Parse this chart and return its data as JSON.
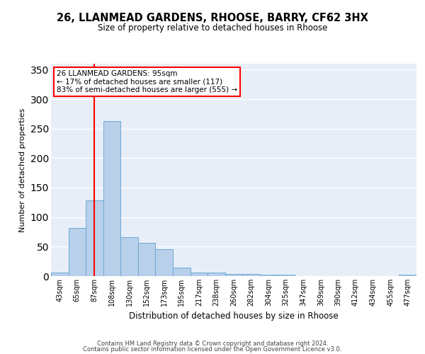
{
  "title": "26, LLANMEAD GARDENS, RHOOSE, BARRY, CF62 3HX",
  "subtitle": "Size of property relative to detached houses in Rhoose",
  "xlabel": "Distribution of detached houses by size in Rhoose",
  "ylabel": "Number of detached properties",
  "bar_labels": [
    "43sqm",
    "65sqm",
    "87sqm",
    "108sqm",
    "130sqm",
    "152sqm",
    "173sqm",
    "195sqm",
    "217sqm",
    "238sqm",
    "260sqm",
    "282sqm",
    "304sqm",
    "325sqm",
    "347sqm",
    "369sqm",
    "390sqm",
    "412sqm",
    "434sqm",
    "455sqm",
    "477sqm"
  ],
  "bar_values": [
    6,
    82,
    128,
    263,
    66,
    57,
    46,
    15,
    6,
    6,
    4,
    4,
    3,
    2,
    0,
    0,
    0,
    0,
    0,
    0,
    2
  ],
  "bar_color": "#b8d0ea",
  "bar_edge_color": "#6aaad4",
  "vline_x": 2,
  "vline_color": "red",
  "ylim": [
    0,
    360
  ],
  "yticks": [
    0,
    50,
    100,
    150,
    200,
    250,
    300,
    350
  ],
  "annotation_title": "26 LLANMEAD GARDENS: 95sqm",
  "annotation_line1": "← 17% of detached houses are smaller (117)",
  "annotation_line2": "83% of semi-detached houses are larger (555) →",
  "annotation_box_color": "white",
  "annotation_box_edge_color": "red",
  "bg_color": "#e8eef8",
  "footer1": "Contains HM Land Registry data © Crown copyright and database right 2024.",
  "footer2": "Contains public sector information licensed under the Open Government Licence v3.0."
}
